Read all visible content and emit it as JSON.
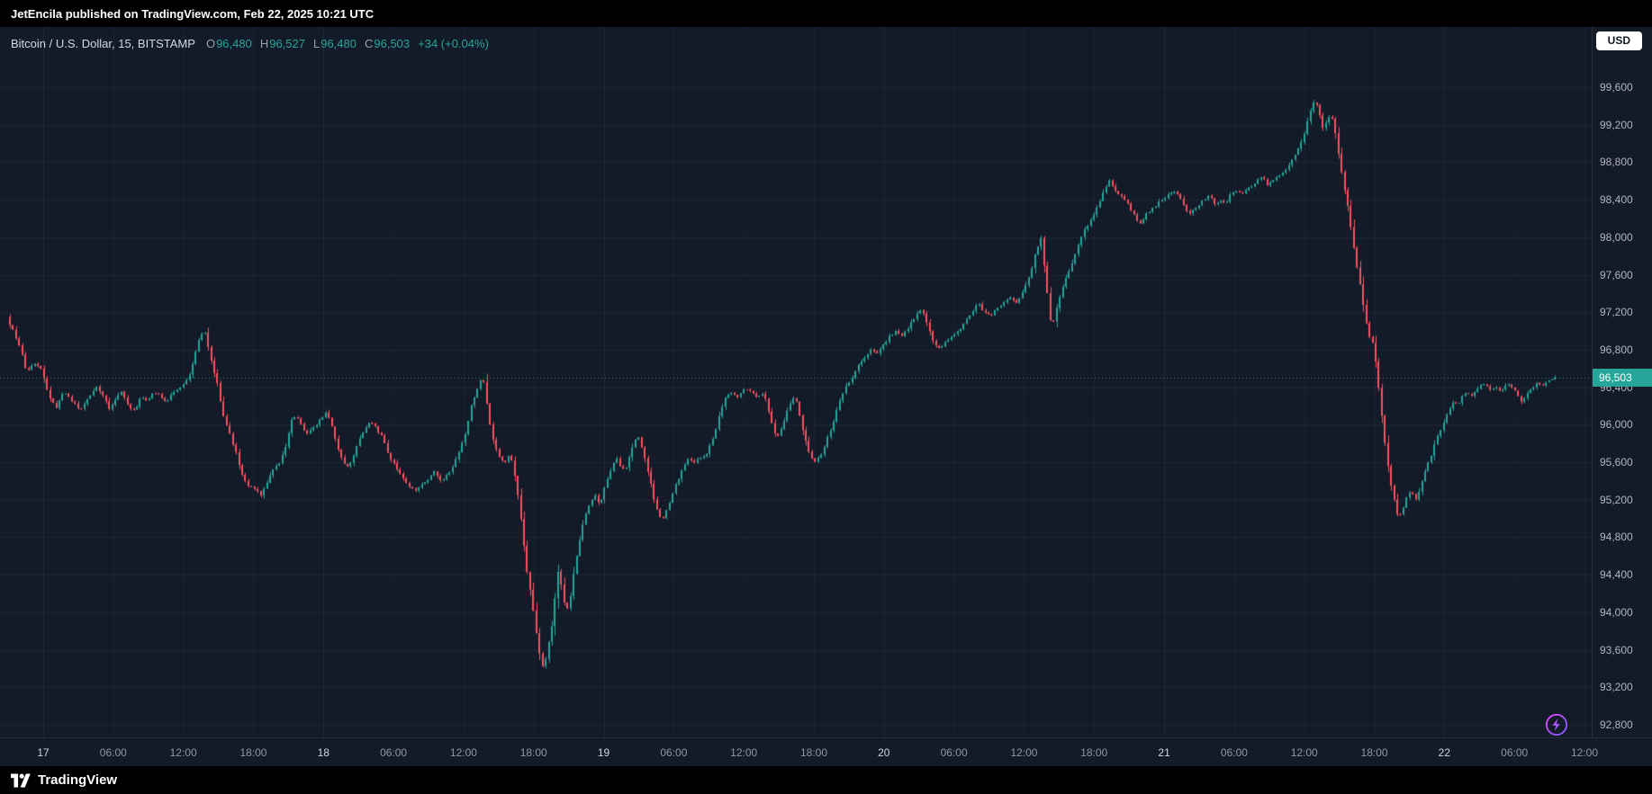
{
  "attribution": "JetEncila published on TradingView.com, Feb 22, 2025 10:21 UTC",
  "header": {
    "symbol": "Bitcoin / U.S. Dollar, 15, BITSTAMP",
    "ohlc": [
      {
        "label": "O",
        "value": "96,480"
      },
      {
        "label": "H",
        "value": "96,527"
      },
      {
        "label": "L",
        "value": "96,480"
      },
      {
        "label": "C",
        "value": "96,503"
      }
    ],
    "change": "+34 (+0.04%)"
  },
  "currency_button": {
    "label": "USD"
  },
  "price_axis": {
    "last_price_label": "96,503"
  },
  "footer": {
    "brand": "TradingView"
  },
  "colors": {
    "up": "#26a69a",
    "down": "#f7525f",
    "badge_bg": "#26a69a",
    "flash_purple_1": "#e24cf5",
    "flash_purple_2": "#7a5cff",
    "background": "#131a28"
  },
  "chart_data": {
    "type": "candlestick",
    "title": "Bitcoin / U.S. Dollar",
    "interval": "15",
    "exchange": "BITSTAMP",
    "open": 96480,
    "high": 96527,
    "low": 96480,
    "close": 96503,
    "last_price": 96503,
    "change": "+34 (+0.04%)",
    "y_ticks": [
      99600,
      99200,
      98800,
      98400,
      98000,
      97600,
      97200,
      96800,
      96400,
      96000,
      95600,
      95200,
      94800,
      94400,
      94000,
      93600,
      93200,
      92800
    ],
    "x_ticks": [
      {
        "label": "17",
        "major": true
      },
      {
        "label": "06:00",
        "major": false
      },
      {
        "label": "12:00",
        "major": false
      },
      {
        "label": "18:00",
        "major": false
      },
      {
        "label": "18",
        "major": true
      },
      {
        "label": "06:00",
        "major": false
      },
      {
        "label": "12:00",
        "major": false
      },
      {
        "label": "18:00",
        "major": false
      },
      {
        "label": "19",
        "major": true
      },
      {
        "label": "06:00",
        "major": false
      },
      {
        "label": "12:00",
        "major": false
      },
      {
        "label": "18:00",
        "major": false
      },
      {
        "label": "20",
        "major": true
      },
      {
        "label": "06:00",
        "major": false
      },
      {
        "label": "12:00",
        "major": false
      },
      {
        "label": "18:00",
        "major": false
      },
      {
        "label": "21",
        "major": true
      },
      {
        "label": "06:00",
        "major": false
      },
      {
        "label": "12:00",
        "major": false
      },
      {
        "label": "18:00",
        "major": false
      },
      {
        "label": "22",
        "major": true
      },
      {
        "label": "06:00",
        "major": false
      },
      {
        "label": "12:00",
        "major": false
      }
    ],
    "path_domain": [
      8,
      1481
    ],
    "price_path": [
      [
        8,
        97150
      ],
      [
        14,
        97000
      ],
      [
        20,
        96850
      ],
      [
        27,
        96550
      ],
      [
        34,
        96650
      ],
      [
        41,
        96600
      ],
      [
        48,
        96300
      ],
      [
        55,
        96180
      ],
      [
        62,
        96350
      ],
      [
        70,
        96250
      ],
      [
        78,
        96150
      ],
      [
        86,
        96300
      ],
      [
        94,
        96400
      ],
      [
        100,
        96300
      ],
      [
        106,
        96150
      ],
      [
        112,
        96300
      ],
      [
        118,
        96350
      ],
      [
        124,
        96200
      ],
      [
        130,
        96150
      ],
      [
        136,
        96300
      ],
      [
        142,
        96250
      ],
      [
        148,
        96350
      ],
      [
        154,
        96300
      ],
      [
        160,
        96250
      ],
      [
        166,
        96350
      ],
      [
        172,
        96400
      ],
      [
        178,
        96450
      ],
      [
        184,
        96600
      ],
      [
        190,
        96900
      ],
      [
        196,
        97000
      ],
      [
        202,
        96700
      ],
      [
        208,
        96450
      ],
      [
        214,
        96100
      ],
      [
        220,
        95900
      ],
      [
        226,
        95700
      ],
      [
        232,
        95450
      ],
      [
        238,
        95350
      ],
      [
        244,
        95300
      ],
      [
        250,
        95250
      ],
      [
        256,
        95400
      ],
      [
        262,
        95550
      ],
      [
        268,
        95600
      ],
      [
        274,
        95800
      ],
      [
        280,
        96100
      ],
      [
        286,
        96050
      ],
      [
        292,
        95900
      ],
      [
        298,
        95950
      ],
      [
        306,
        96050
      ],
      [
        312,
        96150
      ],
      [
        318,
        95950
      ],
      [
        324,
        95700
      ],
      [
        330,
        95550
      ],
      [
        336,
        95600
      ],
      [
        342,
        95800
      ],
      [
        348,
        95950
      ],
      [
        354,
        96050
      ],
      [
        360,
        95950
      ],
      [
        366,
        95850
      ],
      [
        372,
        95650
      ],
      [
        378,
        95550
      ],
      [
        384,
        95450
      ],
      [
        390,
        95350
      ],
      [
        396,
        95300
      ],
      [
        402,
        95350
      ],
      [
        408,
        95400
      ],
      [
        414,
        95500
      ],
      [
        420,
        95400
      ],
      [
        426,
        95450
      ],
      [
        432,
        95550
      ],
      [
        438,
        95700
      ],
      [
        444,
        95900
      ],
      [
        450,
        96200
      ],
      [
        456,
        96400
      ],
      [
        461,
        96520
      ],
      [
        466,
        96100
      ],
      [
        470,
        95850
      ],
      [
        476,
        95650
      ],
      [
        482,
        95600
      ],
      [
        487,
        95700
      ],
      [
        492,
        95400
      ],
      [
        496,
        95100
      ],
      [
        500,
        94700
      ],
      [
        504,
        94350
      ],
      [
        508,
        94100
      ],
      [
        512,
        93750
      ],
      [
        516,
        93480
      ],
      [
        519,
        93370
      ],
      [
        522,
        93600
      ],
      [
        526,
        93800
      ],
      [
        530,
        94200
      ],
      [
        533,
        94500
      ],
      [
        536,
        94250
      ],
      [
        540,
        94000
      ],
      [
        544,
        94150
      ],
      [
        548,
        94500
      ],
      [
        552,
        94700
      ],
      [
        556,
        94950
      ],
      [
        560,
        95100
      ],
      [
        564,
        95200
      ],
      [
        568,
        95250
      ],
      [
        572,
        95150
      ],
      [
        576,
        95300
      ],
      [
        580,
        95450
      ],
      [
        584,
        95550
      ],
      [
        588,
        95650
      ],
      [
        592,
        95550
      ],
      [
        596,
        95500
      ],
      [
        600,
        95650
      ],
      [
        604,
        95800
      ],
      [
        608,
        95900
      ],
      [
        612,
        95750
      ],
      [
        616,
        95600
      ],
      [
        620,
        95400
      ],
      [
        624,
        95200
      ],
      [
        628,
        95050
      ],
      [
        632,
        95000
      ],
      [
        638,
        95150
      ],
      [
        644,
        95350
      ],
      [
        650,
        95500
      ],
      [
        656,
        95650
      ],
      [
        662,
        95600
      ],
      [
        668,
        95650
      ],
      [
        674,
        95700
      ],
      [
        680,
        95850
      ],
      [
        686,
        96100
      ],
      [
        692,
        96300
      ],
      [
        698,
        96350
      ],
      [
        704,
        96300
      ],
      [
        710,
        96400
      ],
      [
        716,
        96350
      ],
      [
        722,
        96300
      ],
      [
        728,
        96350
      ],
      [
        734,
        96100
      ],
      [
        740,
        95850
      ],
      [
        746,
        96000
      ],
      [
        752,
        96200
      ],
      [
        758,
        96300
      ],
      [
        764,
        96000
      ],
      [
        770,
        95750
      ],
      [
        776,
        95600
      ],
      [
        782,
        95650
      ],
      [
        788,
        95850
      ],
      [
        794,
        96000
      ],
      [
        800,
        96250
      ],
      [
        806,
        96400
      ],
      [
        812,
        96500
      ],
      [
        818,
        96650
      ],
      [
        824,
        96700
      ],
      [
        830,
        96800
      ],
      [
        836,
        96750
      ],
      [
        842,
        96850
      ],
      [
        848,
        96950
      ],
      [
        854,
        97000
      ],
      [
        860,
        96950
      ],
      [
        866,
        97050
      ],
      [
        872,
        97150
      ],
      [
        878,
        97250
      ],
      [
        884,
        97050
      ],
      [
        890,
        96850
      ],
      [
        896,
        96800
      ],
      [
        902,
        96900
      ],
      [
        908,
        96950
      ],
      [
        914,
        97000
      ],
      [
        920,
        97100
      ],
      [
        926,
        97200
      ],
      [
        932,
        97300
      ],
      [
        938,
        97200
      ],
      [
        944,
        97150
      ],
      [
        950,
        97250
      ],
      [
        956,
        97300
      ],
      [
        962,
        97350
      ],
      [
        968,
        97300
      ],
      [
        974,
        97400
      ],
      [
        980,
        97550
      ],
      [
        986,
        97800
      ],
      [
        992,
        98000
      ],
      [
        997,
        97500
      ],
      [
        1002,
        97000
      ],
      [
        1007,
        97250
      ],
      [
        1012,
        97450
      ],
      [
        1017,
        97600
      ],
      [
        1022,
        97750
      ],
      [
        1027,
        97900
      ],
      [
        1032,
        98050
      ],
      [
        1037,
        98150
      ],
      [
        1042,
        98250
      ],
      [
        1047,
        98350
      ],
      [
        1052,
        98500
      ],
      [
        1057,
        98620
      ],
      [
        1062,
        98500
      ],
      [
        1067,
        98450
      ],
      [
        1072,
        98400
      ],
      [
        1077,
        98300
      ],
      [
        1082,
        98200
      ],
      [
        1087,
        98150
      ],
      [
        1092,
        98250
      ],
      [
        1097,
        98300
      ],
      [
        1102,
        98350
      ],
      [
        1107,
        98400
      ],
      [
        1112,
        98450
      ],
      [
        1117,
        98500
      ],
      [
        1122,
        98450
      ],
      [
        1127,
        98350
      ],
      [
        1132,
        98250
      ],
      [
        1137,
        98300
      ],
      [
        1142,
        98350
      ],
      [
        1147,
        98400
      ],
      [
        1152,
        98450
      ],
      [
        1157,
        98350
      ],
      [
        1162,
        98400
      ],
      [
        1167,
        98350
      ],
      [
        1172,
        98450
      ],
      [
        1177,
        98500
      ],
      [
        1182,
        98450
      ],
      [
        1187,
        98500
      ],
      [
        1192,
        98550
      ],
      [
        1197,
        98600
      ],
      [
        1202,
        98650
      ],
      [
        1207,
        98550
      ],
      [
        1212,
        98600
      ],
      [
        1217,
        98650
      ],
      [
        1222,
        98700
      ],
      [
        1227,
        98750
      ],
      [
        1232,
        98850
      ],
      [
        1237,
        98950
      ],
      [
        1242,
        99100
      ],
      [
        1247,
        99300
      ],
      [
        1252,
        99460
      ],
      [
        1256,
        99350
      ],
      [
        1260,
        99150
      ],
      [
        1264,
        99250
      ],
      [
        1268,
        99300
      ],
      [
        1272,
        99100
      ],
      [
        1276,
        98800
      ],
      [
        1280,
        98550
      ],
      [
        1284,
        98300
      ],
      [
        1288,
        98000
      ],
      [
        1292,
        97700
      ],
      [
        1296,
        97450
      ],
      [
        1300,
        97150
      ],
      [
        1304,
        96950
      ],
      [
        1308,
        96850
      ],
      [
        1312,
        96500
      ],
      [
        1316,
        96100
      ],
      [
        1320,
        95700
      ],
      [
        1324,
        95400
      ],
      [
        1328,
        95200
      ],
      [
        1332,
        94980
      ],
      [
        1336,
        95100
      ],
      [
        1340,
        95250
      ],
      [
        1344,
        95300
      ],
      [
        1348,
        95200
      ],
      [
        1352,
        95300
      ],
      [
        1356,
        95450
      ],
      [
        1360,
        95600
      ],
      [
        1364,
        95700
      ],
      [
        1368,
        95850
      ],
      [
        1372,
        95950
      ],
      [
        1376,
        96050
      ],
      [
        1380,
        96150
      ],
      [
        1384,
        96250
      ],
      [
        1388,
        96200
      ],
      [
        1392,
        96300
      ],
      [
        1396,
        96350
      ],
      [
        1400,
        96300
      ],
      [
        1404,
        96350
      ],
      [
        1408,
        96400
      ],
      [
        1412,
        96450
      ],
      [
        1416,
        96400
      ],
      [
        1420,
        96350
      ],
      [
        1424,
        96400
      ],
      [
        1428,
        96350
      ],
      [
        1432,
        96400
      ],
      [
        1436,
        96450
      ],
      [
        1440,
        96400
      ],
      [
        1444,
        96350
      ],
      [
        1448,
        96250
      ],
      [
        1452,
        96300
      ],
      [
        1456,
        96350
      ],
      [
        1460,
        96400
      ],
      [
        1464,
        96450
      ],
      [
        1468,
        96400
      ],
      [
        1472,
        96450
      ],
      [
        1476,
        96480
      ],
      [
        1481,
        96503
      ]
    ]
  }
}
